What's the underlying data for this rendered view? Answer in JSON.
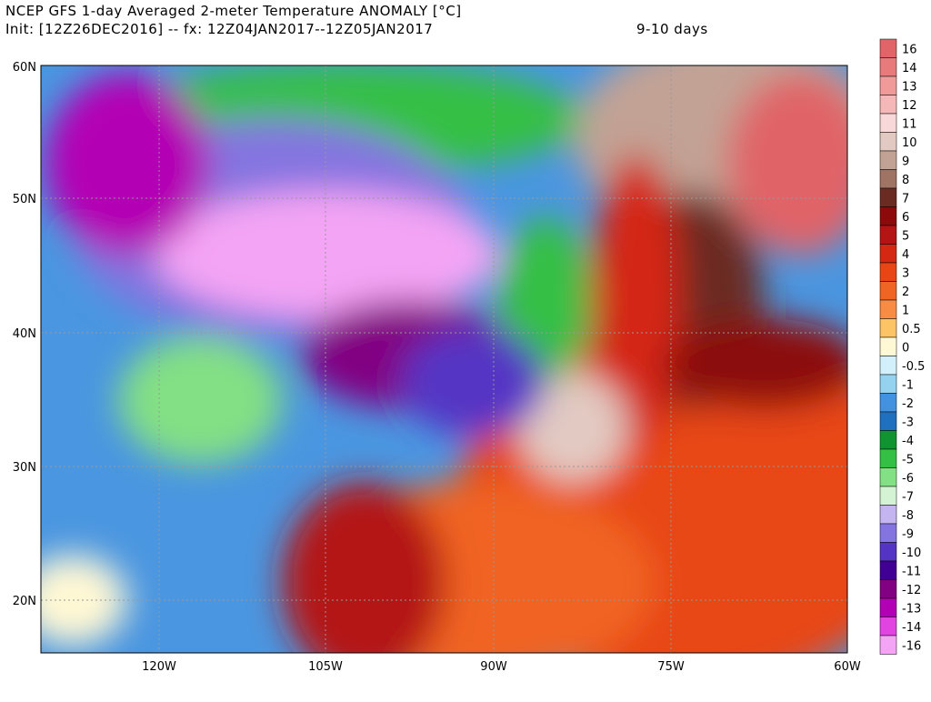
{
  "header": {
    "title": "NCEP GFS 1-day Averaged 2-meter Temperature ANOMALY [°C]",
    "init": "Init: [12Z26DEC2016] -- fx: 12Z04JAN2017--12Z05JAN2017",
    "range": "9-10 days"
  },
  "map": {
    "lat_labels": [
      "60N",
      "50N",
      "40N",
      "30N",
      "20N"
    ],
    "lon_labels": [
      "120W",
      "105W",
      "90W",
      "75W",
      "60W"
    ]
  },
  "colorbar": {
    "levels": [
      {
        "label": 16,
        "color": "#e06468"
      },
      {
        "label": 14,
        "color": "#e87a7c"
      },
      {
        "label": 13,
        "color": "#f09a9a"
      },
      {
        "label": 12,
        "color": "#f5b8b8"
      },
      {
        "label": 11,
        "color": "#f8d8d8"
      },
      {
        "label": 10,
        "color": "#e2cac2"
      },
      {
        "label": 9,
        "color": "#c2a294"
      },
      {
        "label": 8,
        "color": "#a07464"
      },
      {
        "label": 7,
        "color": "#6a2c22"
      },
      {
        "label": 6,
        "color": "#8c0a0a"
      },
      {
        "label": 5,
        "color": "#b41414"
      },
      {
        "label": 4,
        "color": "#d42812"
      },
      {
        "label": 3,
        "color": "#e84614"
      },
      {
        "label": 2,
        "color": "#f06424"
      },
      {
        "label": 1,
        "color": "#f88c44"
      },
      {
        "label": 0.5,
        "color": "#fcc464"
      },
      {
        "label": 0,
        "color": "#fff8d4"
      },
      {
        "label": -0.5,
        "color": "#d2f0fc"
      },
      {
        "label": -1,
        "color": "#94d2f0"
      },
      {
        "label": -2,
        "color": "#4292e0"
      },
      {
        "label": -3,
        "color": "#2070c0"
      },
      {
        "label": -4,
        "color": "#109432"
      },
      {
        "label": -5,
        "color": "#34c044"
      },
      {
        "label": -6,
        "color": "#84e084"
      },
      {
        "label": -7,
        "color": "#d4f2d4"
      },
      {
        "label": -8,
        "color": "#c4b4f0"
      },
      {
        "label": -9,
        "color": "#8474e0"
      },
      {
        "label": -10,
        "color": "#5434c4"
      },
      {
        "label": -11,
        "color": "#400094"
      },
      {
        "label": -12,
        "color": "#820082"
      },
      {
        "label": -13,
        "color": "#b400b4"
      },
      {
        "label": -14,
        "color": "#e244e2"
      },
      {
        "label": -16,
        "color": "#f4a4f4"
      }
    ]
  }
}
